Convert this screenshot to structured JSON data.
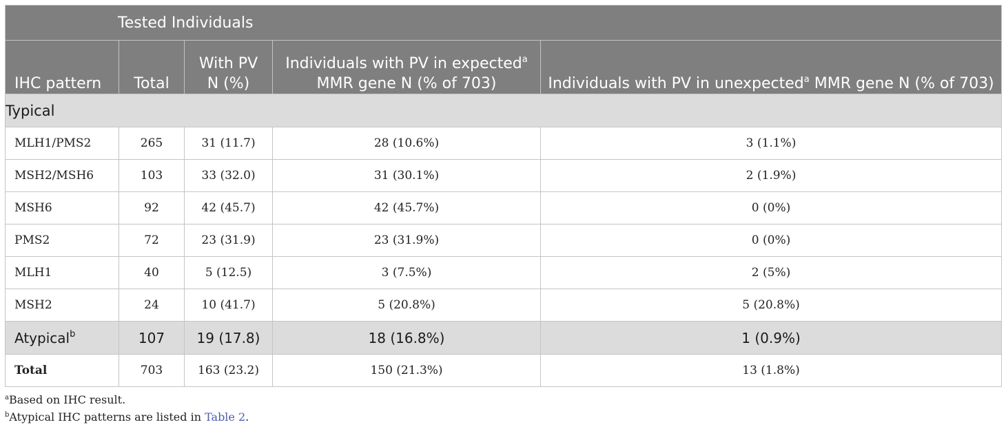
{
  "header": {
    "group_label": "Tested Individuals",
    "columns": {
      "ihc_pattern": "IHC pattern",
      "total": "Total",
      "with_pv_line1": "With PV",
      "with_pv_line2": "N (%)",
      "expected_line1_a": "Individuals with PV in expected",
      "expected_sup": "a",
      "expected_line2": "MMR gene N (% of 703)",
      "unexpected_a": "Individuals with PV in unexpected",
      "unexpected_sup": "a",
      "unexpected_b": " MMR gene N (% of 703)"
    }
  },
  "section_typical": "Typical",
  "rows": [
    {
      "pattern": "MLH1/PMS2",
      "total": "265",
      "with_pv": "31 (11.7)",
      "expected": "28 (10.6%)",
      "unexpected": "3 (1.1%)"
    },
    {
      "pattern": "MSH2/MSH6",
      "total": "103",
      "with_pv": "33 (32.0)",
      "expected": "31 (30.1%)",
      "unexpected": "2 (1.9%)"
    },
    {
      "pattern": "MSH6",
      "total": "92",
      "with_pv": "42 (45.7)",
      "expected": "42 (45.7%)",
      "unexpected": "0 (0%)"
    },
    {
      "pattern": "PMS2",
      "total": "72",
      "with_pv": "23 (31.9)",
      "expected": "23 (31.9%)",
      "unexpected": "0 (0%)"
    },
    {
      "pattern": "MLH1",
      "total": "40",
      "with_pv": "5 (12.5)",
      "expected": "3 (7.5%)",
      "unexpected": "2 (5%)"
    },
    {
      "pattern": "MSH2",
      "total": "24",
      "with_pv": "10 (41.7)",
      "expected": "5 (20.8%)",
      "unexpected": "5 (20.8%)"
    }
  ],
  "atypical": {
    "pattern": "Atypical",
    "sup": "b",
    "total": "107",
    "with_pv": "19 (17.8)",
    "expected": "18 (16.8%)",
    "unexpected": "1 (0.9%)"
  },
  "total_row": {
    "pattern": "Total",
    "total": "703",
    "with_pv": "163 (23.2)",
    "expected": "150 (21.3%)",
    "unexpected": "13 (1.8%)"
  },
  "footnotes": {
    "a_sup": "a",
    "a_text": "Based on IHC result.",
    "b_sup": "b",
    "b_text_before": "Atypical IHC patterns are listed in ",
    "b_link": "Table 2",
    "b_text_after": "."
  }
}
